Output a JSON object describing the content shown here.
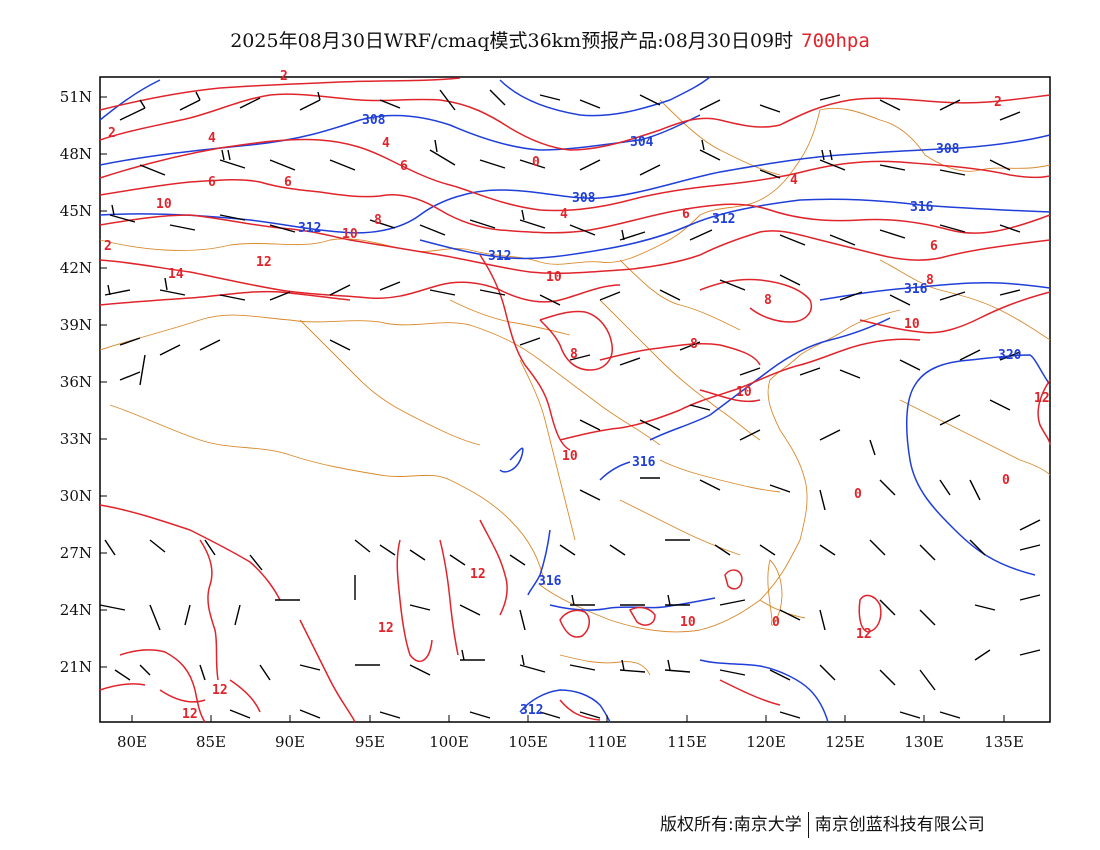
{
  "title": {
    "main": "2025年08月30日WRF/cmaq模式36km预报产品:08月30日09时",
    "level": "700hpa"
  },
  "axes": {
    "y_labels": [
      "51N",
      "48N",
      "45N",
      "42N",
      "39N",
      "36N",
      "33N",
      "30N",
      "27N",
      "24N",
      "21N"
    ],
    "x_labels": [
      "80E",
      "85E",
      "90E",
      "95E",
      "100E",
      "105E",
      "110E",
      "115E",
      "120E",
      "125E",
      "130E",
      "135E"
    ]
  },
  "contour_labels": {
    "height": [
      "308",
      "304",
      "308",
      "308",
      "312",
      "312",
      "312",
      "316",
      "316",
      "316",
      "316",
      "320",
      "312"
    ],
    "temperature": [
      "2",
      "2",
      "2",
      "2",
      "4",
      "4",
      "4",
      "6",
      "6",
      "6",
      "6",
      "6",
      "8",
      "8",
      "8",
      "8",
      "8",
      "10",
      "10",
      "10",
      "10",
      "10",
      "10",
      "10",
      "12",
      "12",
      "12",
      "12",
      "12",
      "12",
      "14",
      "0",
      "0",
      "0",
      "0",
      "4",
      "12"
    ]
  },
  "footer": {
    "left": "版权所有:南京大学",
    "right": "南京创蓝科技有限公司"
  },
  "colors": {
    "height_contour": "#1f3fd8",
    "temperature_contour": "#e0242b",
    "border": "#d88a2e",
    "wind": "#000000",
    "level_text": "#e0242b"
  }
}
